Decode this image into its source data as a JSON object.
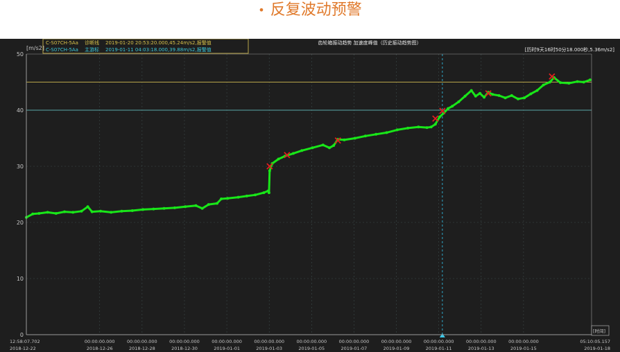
{
  "page": {
    "title": "反复波动预警",
    "bullet": "•"
  },
  "legend": {
    "row1": {
      "channel": "C-S07CH-5Aa",
      "tag": "诊断线",
      "text": "2019-01-20 20:53:20.000,45.24m/s2,报警值"
    },
    "row2": {
      "channel": "C-S07CH-5Aa",
      "tag": "主游标",
      "text": "2019-01-11 04:03:18.000,39.88m/s2,报警值"
    }
  },
  "chart_header": {
    "title": "齿轮箱振动趋势 加速度峰值（历史振动趋势图）",
    "range_info": "[历时9天16时50分18.000秒,5.36m/s2]"
  },
  "colors": {
    "background": "#1e1e1e",
    "series": "#19e619",
    "grid": "#3c4a4a",
    "threshold_high": "#b8a54a",
    "threshold_low": "#5aa8a8",
    "marker": "#e02020",
    "cursor": "#2fa8c8",
    "axis_text": "#c8c8c8"
  },
  "chart_data": {
    "type": "line",
    "title": "齿轮箱振动趋势 加速度峰值（历史振动趋势图）",
    "xlabel": "[时间]",
    "ylabel": "[m/s2]",
    "ylim": [
      0,
      50
    ],
    "yticks": [
      0,
      10,
      20,
      30,
      40,
      50
    ],
    "xlim": [
      "2018-12-22 12:58:07.702",
      "2019-01-18 05:10:05.157"
    ],
    "xticks": [
      {
        "date": "2018-12-22",
        "time": "12:58:07.702",
        "x": 0
      },
      {
        "date": "2018-12-26",
        "time": "00:00:00.000",
        "x": 3.46
      },
      {
        "date": "2018-12-28",
        "time": "00:00:00.000",
        "x": 5.46
      },
      {
        "date": "2018-12-30",
        "time": "00:00:00.000",
        "x": 7.46
      },
      {
        "date": "2019-01-01",
        "time": "00:00:00.000",
        "x": 9.46
      },
      {
        "date": "2019-01-03",
        "time": "00:00:00.000",
        "x": 11.46
      },
      {
        "date": "2019-01-05",
        "time": "00:00:00.000",
        "x": 13.46
      },
      {
        "date": "2019-01-07",
        "time": "00:00:00.000",
        "x": 15.46
      },
      {
        "date": "2019-01-09",
        "time": "00:00:00.000",
        "x": 17.46
      },
      {
        "date": "2019-01-11",
        "time": "00:00:00.000",
        "x": 19.46
      },
      {
        "date": "2019-01-13",
        "time": "00:00:00.000",
        "x": 21.46
      },
      {
        "date": "2019-01-15",
        "time": "00:00:00.000",
        "x": 23.46
      },
      {
        "date": "2019-01-18",
        "time": "05:10:05.157",
        "x": 26.67
      }
    ],
    "thresholds": [
      45,
      40
    ],
    "cursor_x": 19.63,
    "series": [
      {
        "values": [
          [
            0.0,
            20.9
          ],
          [
            0.3,
            21.5
          ],
          [
            0.6,
            21.6
          ],
          [
            1.0,
            21.8
          ],
          [
            1.4,
            21.6
          ],
          [
            1.8,
            21.9
          ],
          [
            2.2,
            21.8
          ],
          [
            2.6,
            22.0
          ],
          [
            2.9,
            22.8
          ],
          [
            3.1,
            21.9
          ],
          [
            3.5,
            22.0
          ],
          [
            4.0,
            21.8
          ],
          [
            4.5,
            22.0
          ],
          [
            5.0,
            22.1
          ],
          [
            5.5,
            22.3
          ],
          [
            6.0,
            22.4
          ],
          [
            6.5,
            22.5
          ],
          [
            7.0,
            22.6
          ],
          [
            7.5,
            22.8
          ],
          [
            8.0,
            23.0
          ],
          [
            8.3,
            22.5
          ],
          [
            8.6,
            23.2
          ],
          [
            9.0,
            23.4
          ],
          [
            9.2,
            24.2
          ],
          [
            9.5,
            24.3
          ],
          [
            10.0,
            24.5
          ],
          [
            10.4,
            24.7
          ],
          [
            10.8,
            24.9
          ],
          [
            11.2,
            25.3
          ],
          [
            11.4,
            25.6
          ],
          [
            11.45,
            25.3
          ],
          [
            11.48,
            29.2
          ],
          [
            11.6,
            30.5
          ],
          [
            11.9,
            31.3
          ],
          [
            12.2,
            31.8
          ],
          [
            12.6,
            32.3
          ],
          [
            13.0,
            32.8
          ],
          [
            13.5,
            33.3
          ],
          [
            14.0,
            33.8
          ],
          [
            14.3,
            33.3
          ],
          [
            14.5,
            33.7
          ],
          [
            14.7,
            34.8
          ],
          [
            15.0,
            34.7
          ],
          [
            15.5,
            35.0
          ],
          [
            16.0,
            35.4
          ],
          [
            16.5,
            35.7
          ],
          [
            17.0,
            36.0
          ],
          [
            17.5,
            36.5
          ],
          [
            18.0,
            36.8
          ],
          [
            18.5,
            37.0
          ],
          [
            18.9,
            36.9
          ],
          [
            19.1,
            37.0
          ],
          [
            19.3,
            37.5
          ],
          [
            19.5,
            38.8
          ],
          [
            19.7,
            39.5
          ],
          [
            19.9,
            40.3
          ],
          [
            20.1,
            40.7
          ],
          [
            20.4,
            41.5
          ],
          [
            20.7,
            42.5
          ],
          [
            21.0,
            43.5
          ],
          [
            21.2,
            42.5
          ],
          [
            21.4,
            43.0
          ],
          [
            21.6,
            42.3
          ],
          [
            21.8,
            43.2
          ],
          [
            22.0,
            42.8
          ],
          [
            22.3,
            42.6
          ],
          [
            22.6,
            42.2
          ],
          [
            22.9,
            42.6
          ],
          [
            23.2,
            42.0
          ],
          [
            23.5,
            42.2
          ],
          [
            23.8,
            42.9
          ],
          [
            24.1,
            43.5
          ],
          [
            24.4,
            44.5
          ],
          [
            24.7,
            45.0
          ],
          [
            24.9,
            45.8
          ],
          [
            25.2,
            44.9
          ],
          [
            25.6,
            44.8
          ],
          [
            26.0,
            45.1
          ],
          [
            26.3,
            45.0
          ],
          [
            26.6,
            45.4
          ]
        ]
      }
    ],
    "markers": [
      {
        "x": 11.48,
        "y": 30.0
      },
      {
        "x": 12.3,
        "y": 32.0
      },
      {
        "x": 14.7,
        "y": 34.6
      },
      {
        "x": 19.3,
        "y": 38.5
      },
      {
        "x": 19.63,
        "y": 39.88
      },
      {
        "x": 21.8,
        "y": 43.0
      },
      {
        "x": 24.8,
        "y": 46.0
      }
    ]
  }
}
